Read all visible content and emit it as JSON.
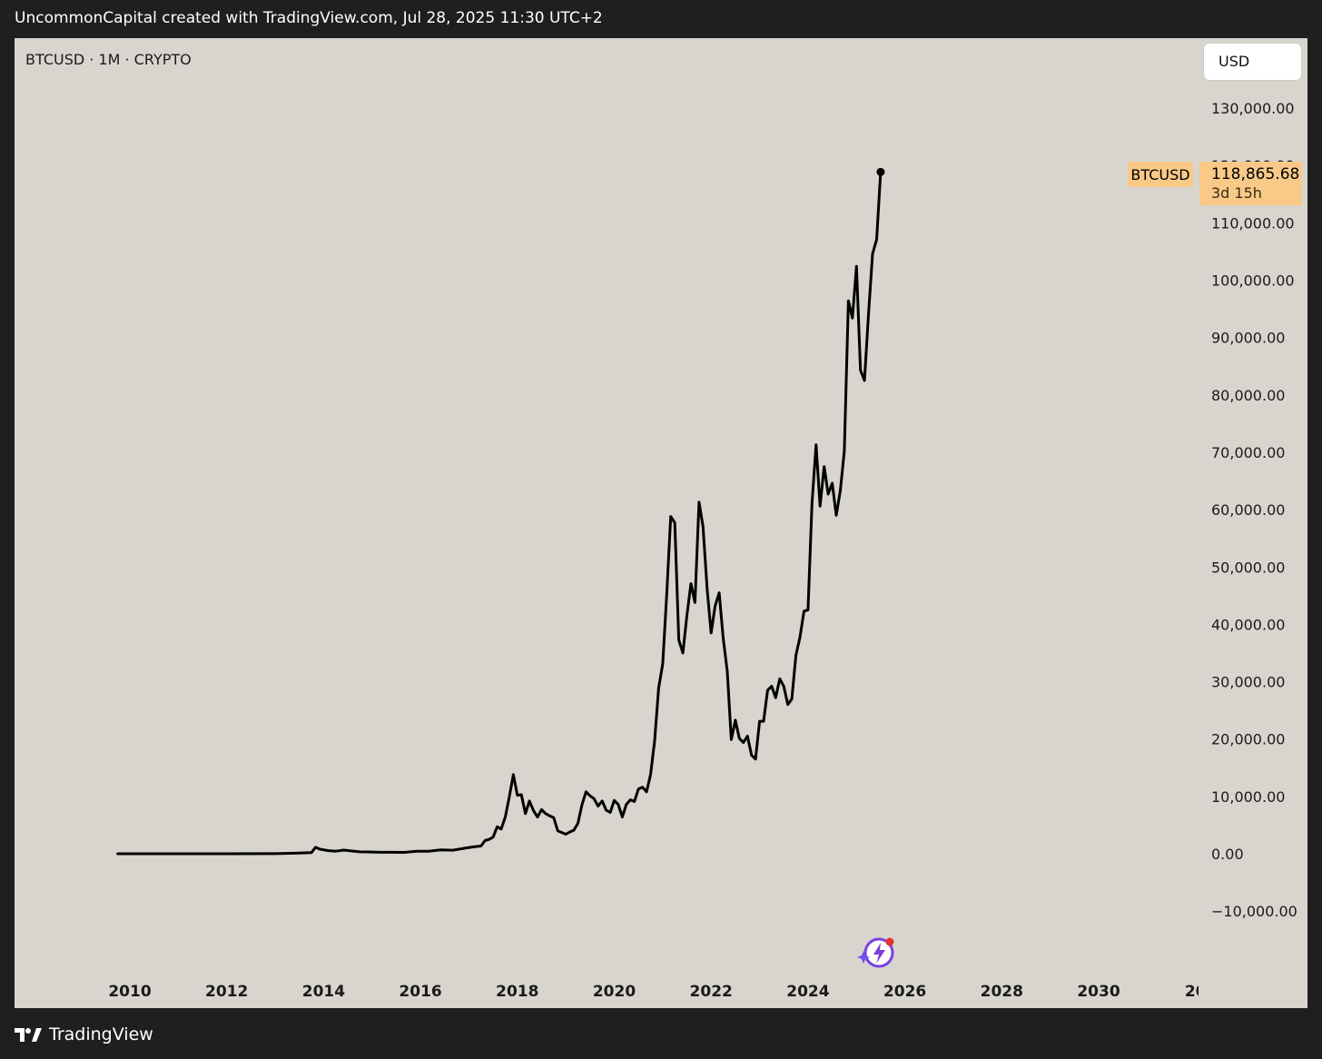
{
  "caption": "UncommonCapital created with TradingView.com, Jul 28, 2025 11:30 UTC+2",
  "symbol_line": "BTCUSD · 1M · CRYPTO",
  "currency": "USD",
  "price_label": {
    "symbol": "BTCUSD",
    "price": "118,865.68",
    "countdown": "3d 15h"
  },
  "footer_brand": "TradingView",
  "colors": {
    "line": "#000000",
    "panel": "#d8d5ce",
    "frame": "#1f1f1f",
    "price_tag": "#f8c987"
  },
  "chart_data": {
    "type": "line",
    "ylim": [
      -10000,
      130000
    ],
    "xlim": [
      "2010-01",
      "2031-12"
    ],
    "y_ticks": [
      "130,000.00",
      "110,000.00",
      "100,000.00",
      "90,000.00",
      "80,000.00",
      "70,000.00",
      "60,000.00",
      "50,000.00",
      "40,000.00",
      "30,000.00",
      "20,000.00",
      "10,000.00",
      "0.00",
      "−10,000.00"
    ],
    "x_ticks": [
      "2010",
      "2012",
      "2014",
      "2016",
      "2018",
      "2020",
      "2022",
      "2024",
      "2026",
      "2028",
      "2030",
      "20"
    ],
    "series": [
      {
        "values": [
          [
            "2009-10",
            0
          ],
          [
            "2012-01",
            5
          ],
          [
            "2013-01",
            20
          ],
          [
            "2013-06",
            100
          ],
          [
            "2013-10",
            200
          ],
          [
            "2013-11",
            1130
          ],
          [
            "2013-12",
            800
          ],
          [
            "2014-02",
            550
          ],
          [
            "2014-04",
            450
          ],
          [
            "2014-06",
            640
          ],
          [
            "2014-08",
            480
          ],
          [
            "2014-10",
            330
          ],
          [
            "2014-12",
            320
          ],
          [
            "2015-03",
            250
          ],
          [
            "2015-06",
            260
          ],
          [
            "2015-09",
            240
          ],
          [
            "2015-12",
            430
          ],
          [
            "2016-03",
            420
          ],
          [
            "2016-06",
            670
          ],
          [
            "2016-09",
            610
          ],
          [
            "2016-12",
            960
          ],
          [
            "2017-02",
            1190
          ],
          [
            "2017-04",
            1350
          ],
          [
            "2017-05",
            2300
          ],
          [
            "2017-06",
            2500
          ],
          [
            "2017-07",
            2900
          ],
          [
            "2017-08",
            4700
          ],
          [
            "2017-09",
            4300
          ],
          [
            "2017-10",
            6400
          ],
          [
            "2017-11",
            9900
          ],
          [
            "2017-12",
            13800
          ],
          [
            "2018-01",
            10200
          ],
          [
            "2018-02",
            10300
          ],
          [
            "2018-03",
            7000
          ],
          [
            "2018-04",
            9200
          ],
          [
            "2018-05",
            7500
          ],
          [
            "2018-06",
            6400
          ],
          [
            "2018-07",
            7700
          ],
          [
            "2018-08",
            7000
          ],
          [
            "2018-09",
            6600
          ],
          [
            "2018-10",
            6300
          ],
          [
            "2018-11",
            4000
          ],
          [
            "2018-12",
            3700
          ],
          [
            "2019-01",
            3400
          ],
          [
            "2019-02",
            3800
          ],
          [
            "2019-03",
            4100
          ],
          [
            "2019-04",
            5300
          ],
          [
            "2019-05",
            8500
          ],
          [
            "2019-06",
            10800
          ],
          [
            "2019-07",
            10100
          ],
          [
            "2019-08",
            9600
          ],
          [
            "2019-09",
            8300
          ],
          [
            "2019-10",
            9200
          ],
          [
            "2019-11",
            7600
          ],
          [
            "2019-12",
            7200
          ],
          [
            "2020-01",
            9300
          ],
          [
            "2020-02",
            8600
          ],
          [
            "2020-03",
            6400
          ],
          [
            "2020-04",
            8600
          ],
          [
            "2020-05",
            9400
          ],
          [
            "2020-06",
            9100
          ],
          [
            "2020-07",
            11300
          ],
          [
            "2020-08",
            11600
          ],
          [
            "2020-09",
            10800
          ],
          [
            "2020-10",
            13800
          ],
          [
            "2020-11",
            19700
          ],
          [
            "2020-12",
            28900
          ],
          [
            "2021-01",
            33100
          ],
          [
            "2021-02",
            45200
          ],
          [
            "2021-03",
            58800
          ],
          [
            "2021-04",
            57700
          ],
          [
            "2021-05",
            37300
          ],
          [
            "2021-06",
            35000
          ],
          [
            "2021-07",
            41500
          ],
          [
            "2021-08",
            47100
          ],
          [
            "2021-09",
            43800
          ],
          [
            "2021-10",
            61300
          ],
          [
            "2021-11",
            57000
          ],
          [
            "2021-12",
            46200
          ],
          [
            "2022-01",
            38500
          ],
          [
            "2022-02",
            43200
          ],
          [
            "2022-03",
            45500
          ],
          [
            "2022-04",
            37600
          ],
          [
            "2022-05",
            31800
          ],
          [
            "2022-06",
            19900
          ],
          [
            "2022-07",
            23300
          ],
          [
            "2022-08",
            20100
          ],
          [
            "2022-09",
            19400
          ],
          [
            "2022-10",
            20500
          ],
          [
            "2022-11",
            17200
          ],
          [
            "2022-12",
            16500
          ],
          [
            "2023-01",
            23100
          ],
          [
            "2023-02",
            23100
          ],
          [
            "2023-03",
            28500
          ],
          [
            "2023-04",
            29200
          ],
          [
            "2023-05",
            27200
          ],
          [
            "2023-06",
            30500
          ],
          [
            "2023-07",
            29200
          ],
          [
            "2023-08",
            26000
          ],
          [
            "2023-09",
            27000
          ],
          [
            "2023-10",
            34600
          ],
          [
            "2023-11",
            37700
          ],
          [
            "2023-12",
            42300
          ],
          [
            "2024-01",
            42500
          ],
          [
            "2024-02",
            61100
          ],
          [
            "2024-03",
            71300
          ],
          [
            "2024-04",
            60600
          ],
          [
            "2024-05",
            67500
          ],
          [
            "2024-06",
            62700
          ],
          [
            "2024-07",
            64600
          ],
          [
            "2024-08",
            59000
          ],
          [
            "2024-09",
            63300
          ],
          [
            "2024-10",
            70200
          ],
          [
            "2024-11",
            96400
          ],
          [
            "2024-12",
            93400
          ],
          [
            "2025-01",
            102400
          ],
          [
            "2025-02",
            84300
          ],
          [
            "2025-03",
            82500
          ],
          [
            "2025-04",
            94200
          ],
          [
            "2025-05",
            104600
          ],
          [
            "2025-06",
            107100
          ],
          [
            "2025-07",
            118865.68
          ]
        ]
      }
    ]
  }
}
